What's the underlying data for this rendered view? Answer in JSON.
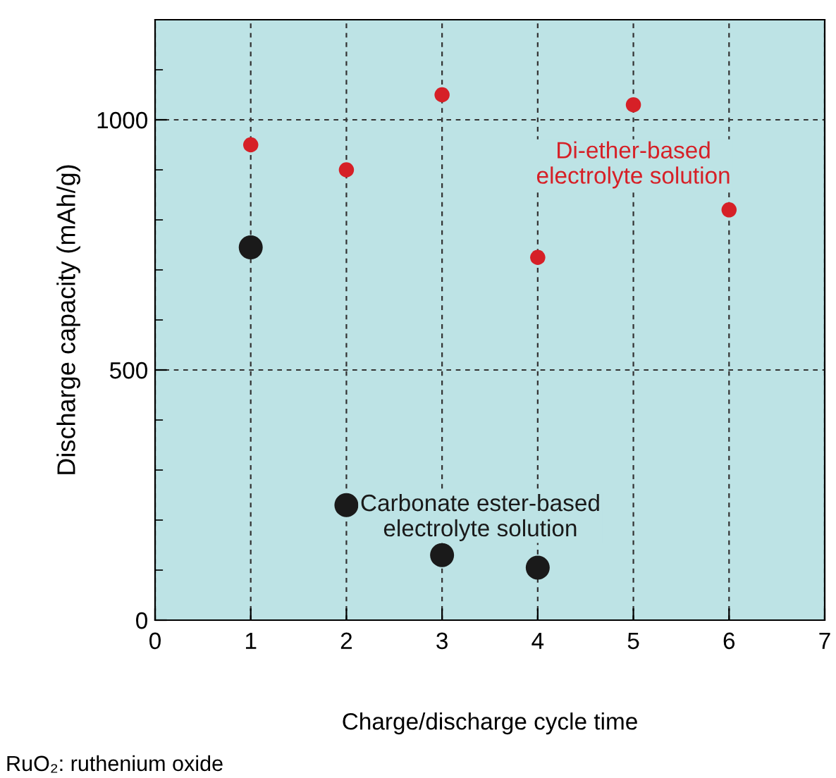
{
  "chart_data": {
    "type": "scatter",
    "xlabel": "Charge/discharge cycle time",
    "ylabel": "Discharge capacity (mAh/g)",
    "series": [
      {
        "name": "Di-ether-based\nelectrolyte solution",
        "color": "#d62027",
        "values": [
          950,
          900,
          1050,
          725,
          1030,
          820
        ],
        "x": [
          1,
          2,
          3,
          4,
          5,
          6
        ]
      },
      {
        "name": "Carbonate ester-based\nelectrolyte solution",
        "color": "#1a1a1a",
        "values": [
          745,
          230,
          130,
          105
        ],
        "x": [
          1,
          2,
          3,
          4
        ]
      }
    ],
    "xlim": [
      0,
      7
    ],
    "xticks": [
      0,
      1,
      2,
      3,
      4,
      5,
      6,
      7
    ],
    "ylim": [
      0,
      1200
    ],
    "yticks": [
      0,
      {
        "value": 100,
        "label": null
      },
      {
        "value": 200,
        "label": null
      },
      {
        "value": 300,
        "label": null
      },
      {
        "value": 400,
        "label": null
      },
      500,
      {
        "value": 600,
        "label": null
      },
      {
        "value": 700,
        "label": null
      },
      {
        "value": 800,
        "label": null
      },
      {
        "value": 900,
        "label": null
      },
      1000,
      {
        "value": 1100,
        "label": null
      }
    ],
    "grid": true,
    "legend": false,
    "marker": "circle",
    "annotations": [
      "RuO₂: ruthenium oxide"
    ]
  }
}
